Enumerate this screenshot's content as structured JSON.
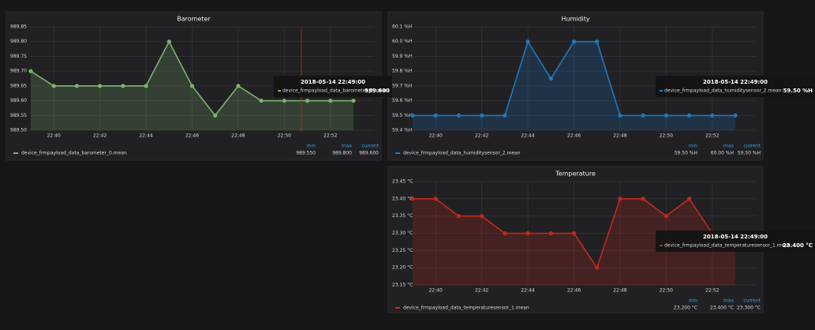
{
  "chart_data": [
    {
      "type": "line",
      "title": "Barometer",
      "x": [
        "22:39",
        "22:40",
        "22:41",
        "22:42",
        "22:43",
        "22:44",
        "22:45",
        "22:46",
        "22:47",
        "22:48",
        "22:49",
        "22:50",
        "22:51",
        "22:52",
        "22:53"
      ],
      "series": [
        {
          "name": "device_frmpayload_data_barometer_0.mean",
          "color": "#7eb26d",
          "values": [
            989.7,
            989.65,
            989.65,
            989.65,
            989.65,
            989.65,
            989.8,
            989.65,
            989.55,
            989.65,
            989.6,
            989.6,
            989.6,
            989.6,
            989.6
          ]
        }
      ],
      "xlim": [
        "22:39",
        "22:53"
      ],
      "xticks": [
        "22:40",
        "22:42",
        "22:44",
        "22:46",
        "22:48",
        "22:50",
        "22:52"
      ],
      "ylim": [
        989.5,
        989.85
      ],
      "yticks": [
        {
          "value": 989.5,
          "label": "989.50"
        },
        {
          "value": 989.55,
          "label": "989.55"
        },
        {
          "value": 989.6,
          "label": "989.60"
        },
        {
          "value": 989.65,
          "label": "989.65"
        },
        {
          "value": 989.7,
          "label": "989.70"
        },
        {
          "value": 989.75,
          "label": "989.75"
        },
        {
          "value": 989.8,
          "label": "989.80"
        },
        {
          "value": 989.85,
          "label": "989.85"
        }
      ],
      "grid": true,
      "legend": {
        "columns": [
          "min",
          "max",
          "current"
        ],
        "stats": [
          "989.550",
          "989.800",
          "989.600"
        ]
      },
      "tooltip": {
        "time": "2018-05-14 22:49:00",
        "label": "device_frmpayload_data_barometer_0.mean:",
        "value": "989.600"
      }
    },
    {
      "type": "line",
      "title": "Humidity",
      "x": [
        "22:39",
        "22:40",
        "22:41",
        "22:42",
        "22:43",
        "22:44",
        "22:45",
        "22:46",
        "22:47",
        "22:48",
        "22:49",
        "22:50",
        "22:51",
        "22:52",
        "22:53"
      ],
      "series": [
        {
          "name": "device_frmpayload_data_humiditysensor_2.mean",
          "color": "#1f78c1",
          "values": [
            59.5,
            59.5,
            59.5,
            59.5,
            59.5,
            60.0,
            59.75,
            60.0,
            60.0,
            59.5,
            59.5,
            59.5,
            59.5,
            59.5,
            59.5
          ]
        }
      ],
      "xlim": [
        "22:39",
        "22:53"
      ],
      "xticks": [
        "22:40",
        "22:42",
        "22:44",
        "22:46",
        "22:48",
        "22:50",
        "22:52"
      ],
      "ylim": [
        59.4,
        60.1
      ],
      "yticks": [
        {
          "value": 59.4,
          "label": "59.4 %H"
        },
        {
          "value": 59.5,
          "label": "59.5 %H"
        },
        {
          "value": 59.6,
          "label": "59.6 %H"
        },
        {
          "value": 59.7,
          "label": "59.7 %H"
        },
        {
          "value": 59.8,
          "label": "59.8 %H"
        },
        {
          "value": 59.9,
          "label": "59.9 %H"
        },
        {
          "value": 60.0,
          "label": "60.0 %H"
        },
        {
          "value": 60.1,
          "label": "60.1 %H"
        }
      ],
      "grid": true,
      "legend": {
        "columns": [
          "min",
          "max",
          "current"
        ],
        "stats": [
          "59.50 %H",
          "60.00 %H",
          "59.50 %H"
        ]
      },
      "tooltip": {
        "time": "2018-05-14 22:49:00",
        "label": "device_frmpayload_data_humiditysensor_2.mean:",
        "value": "59.50 %H"
      }
    },
    {
      "type": "line",
      "title": "Temperature",
      "x": [
        "22:39",
        "22:40",
        "22:41",
        "22:42",
        "22:43",
        "22:44",
        "22:45",
        "22:46",
        "22:47",
        "22:48",
        "22:49",
        "22:50",
        "22:51",
        "22:52",
        "22:53"
      ],
      "series": [
        {
          "name": "device_frmpayload_data_temperaturesensor_1.mean",
          "color": "#c4281a",
          "values": [
            23.4,
            23.4,
            23.35,
            23.35,
            23.3,
            23.3,
            23.3,
            23.3,
            23.2,
            23.4,
            23.4,
            23.35,
            23.4,
            23.3,
            23.3
          ]
        }
      ],
      "xlim": [
        "22:39",
        "22:53"
      ],
      "xticks": [
        "22:40",
        "22:42",
        "22:44",
        "22:46",
        "22:48",
        "22:50",
        "22:52"
      ],
      "ylim": [
        23.15,
        23.45
      ],
      "yticks": [
        {
          "value": 23.15,
          "label": "23.15 °C"
        },
        {
          "value": 23.2,
          "label": "23.20 °C"
        },
        {
          "value": 23.25,
          "label": "23.25 °C"
        },
        {
          "value": 23.3,
          "label": "23.30 °C"
        },
        {
          "value": 23.35,
          "label": "23.35 °C"
        },
        {
          "value": 23.4,
          "label": "23.40 °C"
        },
        {
          "value": 23.45,
          "label": "23.45 °C"
        }
      ],
      "grid": true,
      "legend": {
        "columns": [
          "min",
          "max",
          "current"
        ],
        "stats": [
          "23.200 °C",
          "23.400 °C",
          "23.300 °C"
        ]
      },
      "tooltip": {
        "time": "2018-05-14 22:49:00",
        "label": "device_frmpayload_data_temperaturesensor_1.mean:",
        "value": "23.400 °C"
      }
    }
  ]
}
